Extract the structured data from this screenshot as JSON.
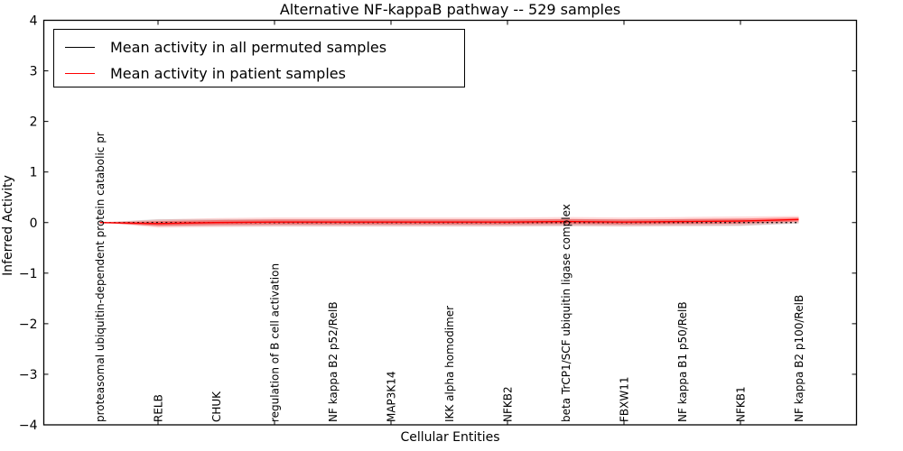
{
  "chart_data": {
    "type": "line",
    "title": "Alternative NF-kappaB pathway -- 529 samples",
    "xlabel": "Cellular Entities",
    "ylabel": "Inferred Activity",
    "ylim": [
      -4,
      4
    ],
    "yticks": [
      {
        "value": 4,
        "label": "4"
      },
      {
        "value": 3,
        "label": "3"
      },
      {
        "value": 2,
        "label": "2"
      },
      {
        "value": 1,
        "label": "1"
      },
      {
        "value": 0,
        "label": "0"
      },
      {
        "value": -1,
        "label": "−1"
      },
      {
        "value": -2,
        "label": "−2"
      },
      {
        "value": -3,
        "label": "−3"
      },
      {
        "value": -4,
        "label": "−4"
      }
    ],
    "xticks_at_indices": [
      1,
      3,
      5,
      7,
      9,
      11
    ],
    "categories": [
      "proteasomal ubiquitin-dependent protein catabolic pr",
      "RELB",
      "CHUK",
      "regulation of B cell activation",
      "NF kappa B2 p52/RelB",
      "MAP3K14",
      "IKK alpha homodimer",
      "NFKB2",
      "beta TrCP1/SCF ubiquitin ligase complex",
      "FBXW11",
      "NF kappa B1 p50/RelB",
      "NFKB1",
      "NF kappa B2 p100/RelB"
    ],
    "grid": false,
    "legend_position": "upper left",
    "series": [
      {
        "name": "Mean activity in all permuted samples",
        "color": "#000000",
        "linestyle": "dotted",
        "values": [
          0,
          0,
          0,
          0,
          0,
          0,
          0,
          0,
          0,
          0,
          0,
          0,
          0
        ],
        "band": {
          "color": "#999999",
          "opacity": 0.3,
          "upper": [
            0,
            0.07,
            0.07,
            0.07,
            0.07,
            0.07,
            0.07,
            0.07,
            0.07,
            0.07,
            0.07,
            0.07,
            0.02
          ],
          "lower": [
            0,
            -0.07,
            -0.07,
            -0.07,
            -0.07,
            -0.07,
            -0.07,
            -0.07,
            -0.07,
            -0.07,
            -0.07,
            -0.07,
            -0.02
          ]
        }
      },
      {
        "name": "Mean activity in patient samples",
        "color": "#ff0000",
        "linestyle": "solid",
        "values": [
          0,
          -0.02,
          0,
          0.01,
          0.01,
          0.01,
          0.01,
          0.01,
          0.02,
          0.01,
          0.02,
          0.03,
          0.06
        ],
        "band_outer": {
          "color": "#ff0000",
          "opacity": 0.15,
          "upper": [
            0,
            0.06,
            0.09,
            0.1,
            0.1,
            0.1,
            0.1,
            0.1,
            0.11,
            0.1,
            0.11,
            0.12,
            0.13
          ],
          "lower": [
            0,
            -0.1,
            -0.09,
            -0.08,
            -0.08,
            -0.08,
            -0.08,
            -0.08,
            -0.07,
            -0.08,
            -0.07,
            -0.06,
            -0.01
          ]
        },
        "band_inner": {
          "color": "#ff0000",
          "opacity": 0.35,
          "upper": [
            0,
            0.03,
            0.05,
            0.06,
            0.06,
            0.06,
            0.06,
            0.06,
            0.07,
            0.06,
            0.07,
            0.08,
            0.1
          ],
          "lower": [
            0,
            -0.07,
            -0.05,
            -0.04,
            -0.04,
            -0.04,
            -0.04,
            -0.04,
            -0.03,
            -0.04,
            -0.03,
            -0.02,
            0.02
          ]
        }
      }
    ]
  }
}
